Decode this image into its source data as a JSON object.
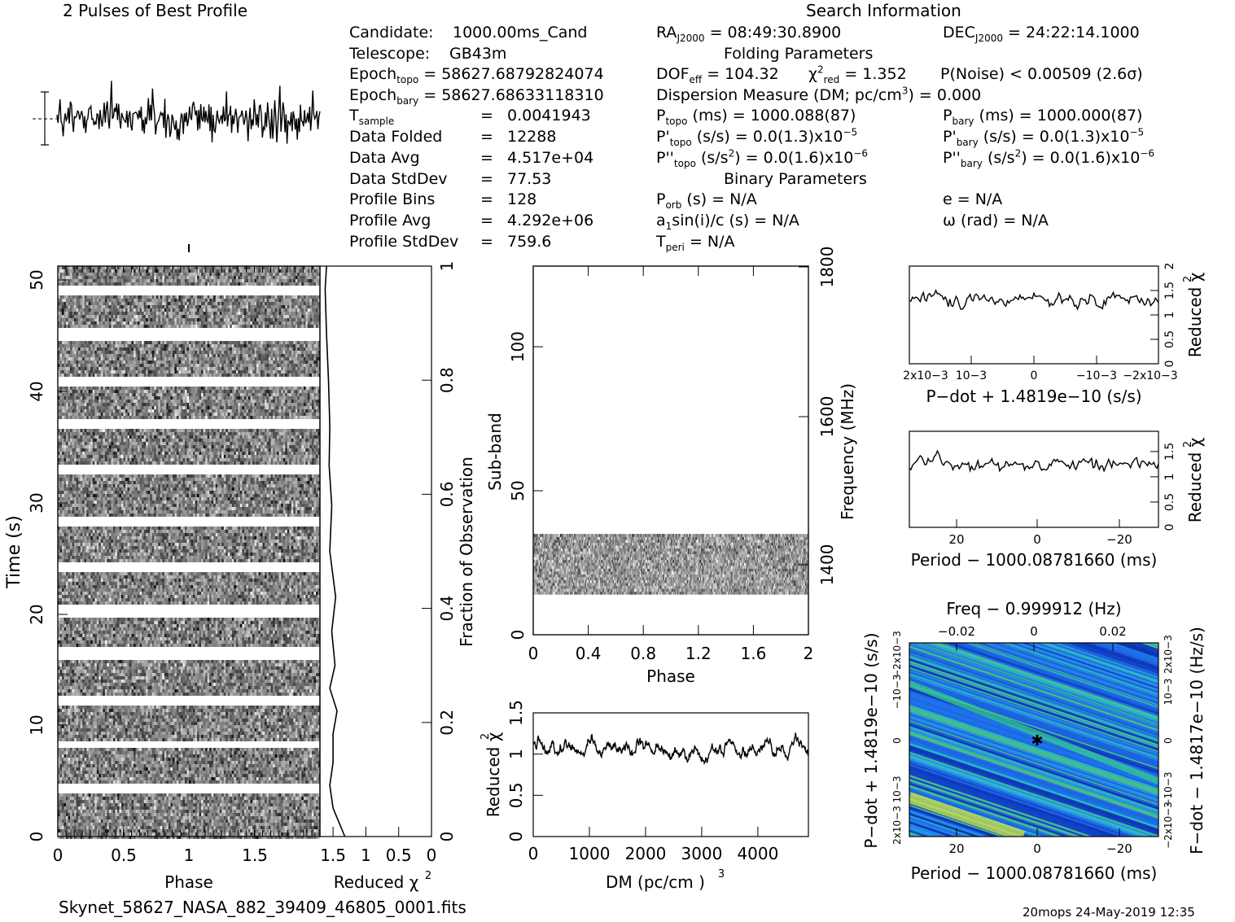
{
  "page": {
    "title_profile": "2 Pulses of Best Profile",
    "title_search": "Search Information",
    "footer_file": "Skynet_58627_NASA_882_39409_46805_0001.fits",
    "footer_stamp": "20mops 24-May-2019 12:35"
  },
  "info": {
    "candidate": {
      "label": "Candidate:",
      "value": "1000.00ms_Cand"
    },
    "telescope": {
      "label": "Telescope:",
      "value": "GB43m"
    },
    "epoch_topo": {
      "label": "Epoch",
      "sub": "topo",
      "value": "= 58627.68792824074"
    },
    "epoch_bary": {
      "label": "Epoch",
      "sub": "bary",
      "value": "= 58627.68633118310"
    },
    "t_sample": {
      "label": "T",
      "sub": "sample",
      "eq": "=",
      "value": "0.0041943"
    },
    "data_folded": {
      "label": "Data Folded",
      "eq": "=",
      "value": "12288"
    },
    "data_avg": {
      "label": "Data Avg",
      "eq": "=",
      "value": "4.517e+04"
    },
    "data_stddev": {
      "label": "Data StdDev",
      "eq": "=",
      "value": "77.53"
    },
    "profile_bins": {
      "label": "Profile Bins",
      "eq": "=",
      "value": "128"
    },
    "profile_avg": {
      "label": "Profile Avg",
      "eq": "=",
      "value": "4.292e+06"
    },
    "profile_stddev": {
      "label": "Profile StdDev",
      "eq": "=",
      "value": "759.6"
    }
  },
  "search": {
    "ra": {
      "label": "RA",
      "sub": "J2000",
      "value": "= 08:49:30.8900"
    },
    "dec": {
      "label": "DEC",
      "sub": "J2000",
      "value": "= 24:22:14.1000"
    },
    "folding_header": "Folding Parameters",
    "dof": {
      "label": "DOF",
      "sub": "eff",
      "value": "= 104.32"
    },
    "chi2": {
      "label": "χ",
      "sup": "2",
      "sub": "red",
      "value": "= 1.352"
    },
    "pnoise": {
      "value": "P(Noise) < 0.00509   (2.6σ)"
    },
    "dm": {
      "prefix": "Dispersion Measure (DM; pc/cm",
      "sup": "3",
      "suffix": ") = 0.000"
    },
    "p_topo": {
      "label": "P",
      "sub": "topo",
      "value": "(ms) =  1000.088(87)"
    },
    "p_bary": {
      "label": "P",
      "sub": "bary",
      "value": "(ms) =  1000.000(87)"
    },
    "pd_topo": {
      "label": "P'",
      "sub": "topo",
      "value": "(s/s) = 0.0(1.3)x10",
      "sup": "−5"
    },
    "pd_bary": {
      "label": "P'",
      "sub": "bary",
      "value": "(s/s) = 0.0(1.3)x10",
      "sup": "−5"
    },
    "pdd_topo": {
      "label": "P''",
      "sub": "topo",
      "pre": "(s/s",
      "sup1": "2",
      "value": ") = 0.0(1.6)x10",
      "sup": "−6"
    },
    "pdd_bary": {
      "label": "P''",
      "sub": "bary",
      "pre": "(s/s",
      "sup1": "2",
      "value": ") = 0.0(1.6)x10",
      "sup": "−6"
    },
    "binary_header": "Binary Parameters",
    "porb": {
      "label": "P",
      "sub": "orb",
      "value": "(s) = N/A"
    },
    "ecc": {
      "value": "e = N/A"
    },
    "a1": {
      "label": "a",
      "sub": "1",
      "value": "sin(i)/c (s) = N/A"
    },
    "omega": {
      "value": "ω (rad) = N/A"
    },
    "tperi": {
      "label": "T",
      "sub": "peri",
      "value": "= N/A"
    }
  },
  "chart_data": [
    {
      "type": "line",
      "title": "2 Pulses of Best Profile",
      "xlabel": "",
      "ylabel": "",
      "x_range": [
        0,
        2
      ],
      "note": "noise profile"
    },
    {
      "type": "heatmap",
      "title": "",
      "xlabel": "Phase",
      "ylabel": "Time (s)",
      "xlim": [
        0,
        2
      ],
      "ylim": [
        0,
        52
      ],
      "x_ticks": [
        "0",
        "0.5",
        "1",
        "1.5"
      ],
      "y_ticks": [
        "0",
        "10",
        "20",
        "30",
        "40",
        "50"
      ]
    },
    {
      "type": "line",
      "xlabel": "Reduced χ2",
      "ylabel": "Fraction of Observation",
      "xlim": [
        1.7,
        0
      ],
      "ylim": [
        0,
        1
      ],
      "x_ticks": [
        "1.5",
        "1",
        "0.5",
        "0"
      ],
      "y_ticks": [
        "0",
        "0.2",
        "0.4",
        "0.6",
        "0.8",
        "1"
      ],
      "points": [
        [
          1.32,
          0.0
        ],
        [
          1.5,
          0.05
        ],
        [
          1.55,
          0.09
        ],
        [
          1.5,
          0.13
        ],
        [
          1.5,
          0.18
        ],
        [
          1.44,
          0.22
        ],
        [
          1.55,
          0.26
        ],
        [
          1.47,
          0.3
        ],
        [
          1.52,
          0.36
        ],
        [
          1.46,
          0.42
        ],
        [
          1.55,
          0.5
        ],
        [
          1.52,
          0.58
        ],
        [
          1.56,
          0.65
        ],
        [
          1.55,
          0.72
        ],
        [
          1.57,
          0.8
        ],
        [
          1.6,
          0.88
        ],
        [
          1.62,
          0.96
        ],
        [
          1.6,
          1.0
        ]
      ]
    },
    {
      "type": "heatmap",
      "xlabel": "Phase",
      "ylabel": "Sub-band",
      "y2label": "Frequency (MHz)",
      "xlim": [
        0,
        2
      ],
      "ylim": [
        0,
        128
      ],
      "x_ticks": [
        "0",
        "0.4",
        "0.8",
        "1.2",
        "1.6",
        "2"
      ],
      "y_ticks": [
        "0",
        "50",
        "100"
      ],
      "y2_ticks": [
        "1400",
        "1600",
        "1800"
      ],
      "band_rows": [
        14,
        35
      ]
    },
    {
      "type": "line",
      "xlabel": "DM (pc/cm3)",
      "ylabel": "Reduced χ2",
      "xlim": [
        0,
        4900
      ],
      "ylim": [
        0,
        1.5
      ],
      "x_ticks": [
        "0",
        "1000",
        "2000",
        "3000",
        "4000"
      ],
      "y_ticks": [
        "0",
        "0.5",
        "1",
        "1.5"
      ]
    },
    {
      "type": "line",
      "xlabel": "P−dot + 1.4819e−10 (s/s)",
      "ylabel": "Reduced χ2",
      "ylim": [
        0,
        2
      ],
      "x_ticks": [
        "2x10−3",
        "10−3",
        "0",
        "−10−3",
        "−2x10−3"
      ],
      "y_ticks": [
        "0",
        "0.5",
        "1",
        "1.5",
        "2"
      ]
    },
    {
      "type": "line",
      "xlabel": "Period − 1000.08781660 (ms)",
      "ylabel": "Reduced χ2",
      "ylim": [
        0,
        1.9
      ],
      "x_ticks": [
        "20",
        "0",
        "−20"
      ],
      "y_ticks": [
        "0",
        "0.5",
        "1",
        "1.5"
      ]
    },
    {
      "type": "heatmap",
      "title": "Freq − 0.999912 (Hz)",
      "xlabel": "Period − 1000.08781660 (ms)",
      "ylabel": "P−dot + 1.4819e−10 (s/s)",
      "y2label": "F−dot − 1.4817e−10 (Hz/s)",
      "x_ticks": [
        "20",
        "0",
        "−20"
      ],
      "x2_ticks": [
        "−0.02",
        "0",
        "0.02"
      ],
      "y_ticks": [
        "2x10−3",
        "10−3",
        "0",
        "−10−3",
        "−2x10−3"
      ],
      "y2_ticks": [
        "−2x10−3",
        "−10−3",
        "0",
        "10−3",
        "2x10−3"
      ]
    }
  ]
}
